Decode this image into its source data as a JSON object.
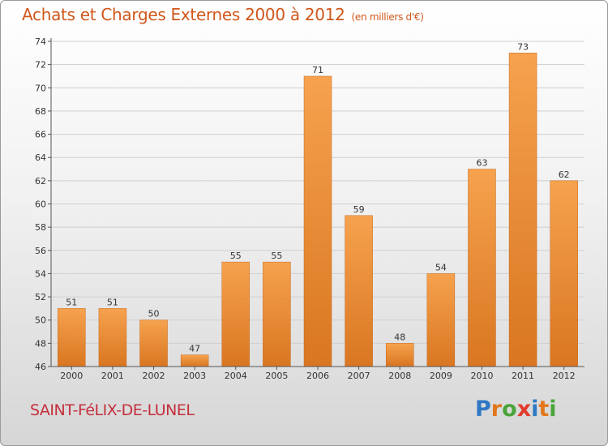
{
  "header": {
    "title": "Achats et Charges Externes 2000 à 2012",
    "unit": "(en milliers d'€)"
  },
  "footer": {
    "place": "SAINT-FéLIX-DE-LUNEL",
    "brand_letters": [
      "P",
      "r",
      "o",
      "x",
      "i",
      "t",
      "i"
    ],
    "brand_colors": [
      "#2f78c4",
      "#e2781c",
      "#4aa43a",
      "#e23b2e",
      "#2f78c4",
      "#e2781c",
      "#4aa43a"
    ]
  },
  "chart_data": {
    "type": "bar",
    "title": "Achats et Charges Externes 2000 à 2012",
    "xlabel": "",
    "ylabel": "",
    "categories": [
      "2000",
      "2001",
      "2002",
      "2003",
      "2004",
      "2005",
      "2006",
      "2007",
      "2008",
      "2009",
      "2010",
      "2011",
      "2012"
    ],
    "values": [
      51,
      51,
      50,
      47,
      55,
      55,
      71,
      59,
      48,
      54,
      63,
      73,
      62
    ],
    "ylim": [
      46,
      74
    ],
    "yticks": [
      46,
      48,
      50,
      52,
      54,
      56,
      58,
      60,
      62,
      64,
      66,
      68,
      70,
      72,
      74
    ],
    "grid": true,
    "colors": {
      "bar_light": "#f6a24e",
      "bar_dark": "#d97621",
      "grid": "#cfcfcf",
      "axis": "#555555"
    }
  }
}
